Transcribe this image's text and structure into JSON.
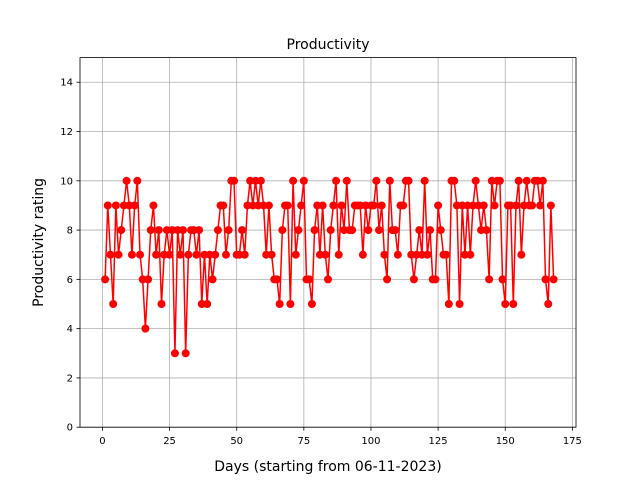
{
  "chart_data": {
    "type": "line",
    "title": "Productivity",
    "xlabel": "Days (starting from 06-11-2023)",
    "ylabel": "Productivity rating",
    "xlim": [
      -8.35,
      176.35
    ],
    "ylim": [
      0,
      15
    ],
    "xticks": [
      0,
      25,
      50,
      75,
      100,
      125,
      150,
      175
    ],
    "yticks": [
      0,
      2,
      4,
      6,
      8,
      10,
      12,
      14
    ],
    "grid": true,
    "series": [
      {
        "color": "#ff0000",
        "marker": "circle",
        "x": [
          1,
          2,
          3,
          4,
          5,
          6,
          7,
          8,
          9,
          10,
          11,
          12,
          13,
          14,
          15,
          16,
          17,
          18,
          19,
          20,
          21,
          22,
          23,
          24,
          25,
          26,
          27,
          28,
          29,
          30,
          31,
          32,
          33,
          34,
          35,
          36,
          37,
          38,
          39,
          40,
          41,
          42,
          43,
          44,
          45,
          46,
          47,
          48,
          49,
          50,
          51,
          52,
          53,
          54,
          55,
          56,
          57,
          58,
          59,
          60,
          61,
          62,
          63,
          64,
          65,
          66,
          67,
          68,
          69,
          70,
          71,
          72,
          73,
          74,
          75,
          76,
          77,
          78,
          79,
          80,
          81,
          82,
          83,
          84,
          85,
          86,
          87,
          88,
          89,
          90,
          91,
          92,
          93,
          94,
          95,
          96,
          97,
          98,
          99,
          100,
          101,
          102,
          103,
          104,
          105,
          106,
          107,
          108,
          109,
          110,
          111,
          112,
          113,
          114,
          115,
          116,
          117,
          118,
          119,
          120,
          121,
          122,
          123,
          124,
          125,
          126,
          127,
          128,
          129,
          130,
          131,
          132,
          133,
          134,
          135,
          136,
          137,
          138,
          139,
          140,
          141,
          142,
          143,
          144,
          145,
          146,
          147,
          148,
          149,
          150,
          151,
          152,
          153,
          154,
          155,
          156,
          157,
          158,
          159,
          160,
          161,
          162,
          163,
          164,
          165,
          166,
          167,
          168
        ],
        "y": [
          6,
          9,
          7,
          5,
          9,
          7,
          8,
          9,
          10,
          9,
          7,
          9,
          10,
          7,
          6,
          4,
          6,
          8,
          9,
          7,
          8,
          5,
          7,
          8,
          7,
          8,
          3,
          8,
          7,
          8,
          3,
          7,
          8,
          8,
          7,
          8,
          5,
          7,
          5,
          7,
          6,
          7,
          8,
          9,
          9,
          7,
          8,
          10,
          10,
          7,
          7,
          8,
          7,
          9,
          10,
          9,
          10,
          9,
          10,
          9,
          7,
          9,
          7,
          6,
          6,
          5,
          8,
          9,
          9,
          5,
          10,
          7,
          8,
          9,
          10,
          6,
          6,
          5,
          8,
          9,
          7,
          9,
          7,
          6,
          8,
          9,
          10,
          7,
          9,
          8,
          10,
          8,
          8,
          9,
          9,
          9,
          7,
          9,
          8,
          9,
          9,
          10,
          8,
          9,
          7,
          6,
          10,
          8,
          8,
          7,
          9,
          9,
          10,
          10,
          7,
          6,
          7,
          8,
          7,
          10,
          7,
          8,
          6,
          6,
          9,
          8,
          7,
          7,
          5,
          10,
          10,
          9,
          5,
          9,
          7,
          9,
          7,
          9,
          10,
          9,
          8,
          9,
          8,
          6,
          10,
          9,
          10,
          10,
          6,
          5,
          9,
          9,
          5,
          9,
          10,
          7,
          9,
          10,
          9,
          9,
          10,
          10,
          9,
          10,
          6,
          5,
          9,
          6
        ]
      }
    ]
  }
}
